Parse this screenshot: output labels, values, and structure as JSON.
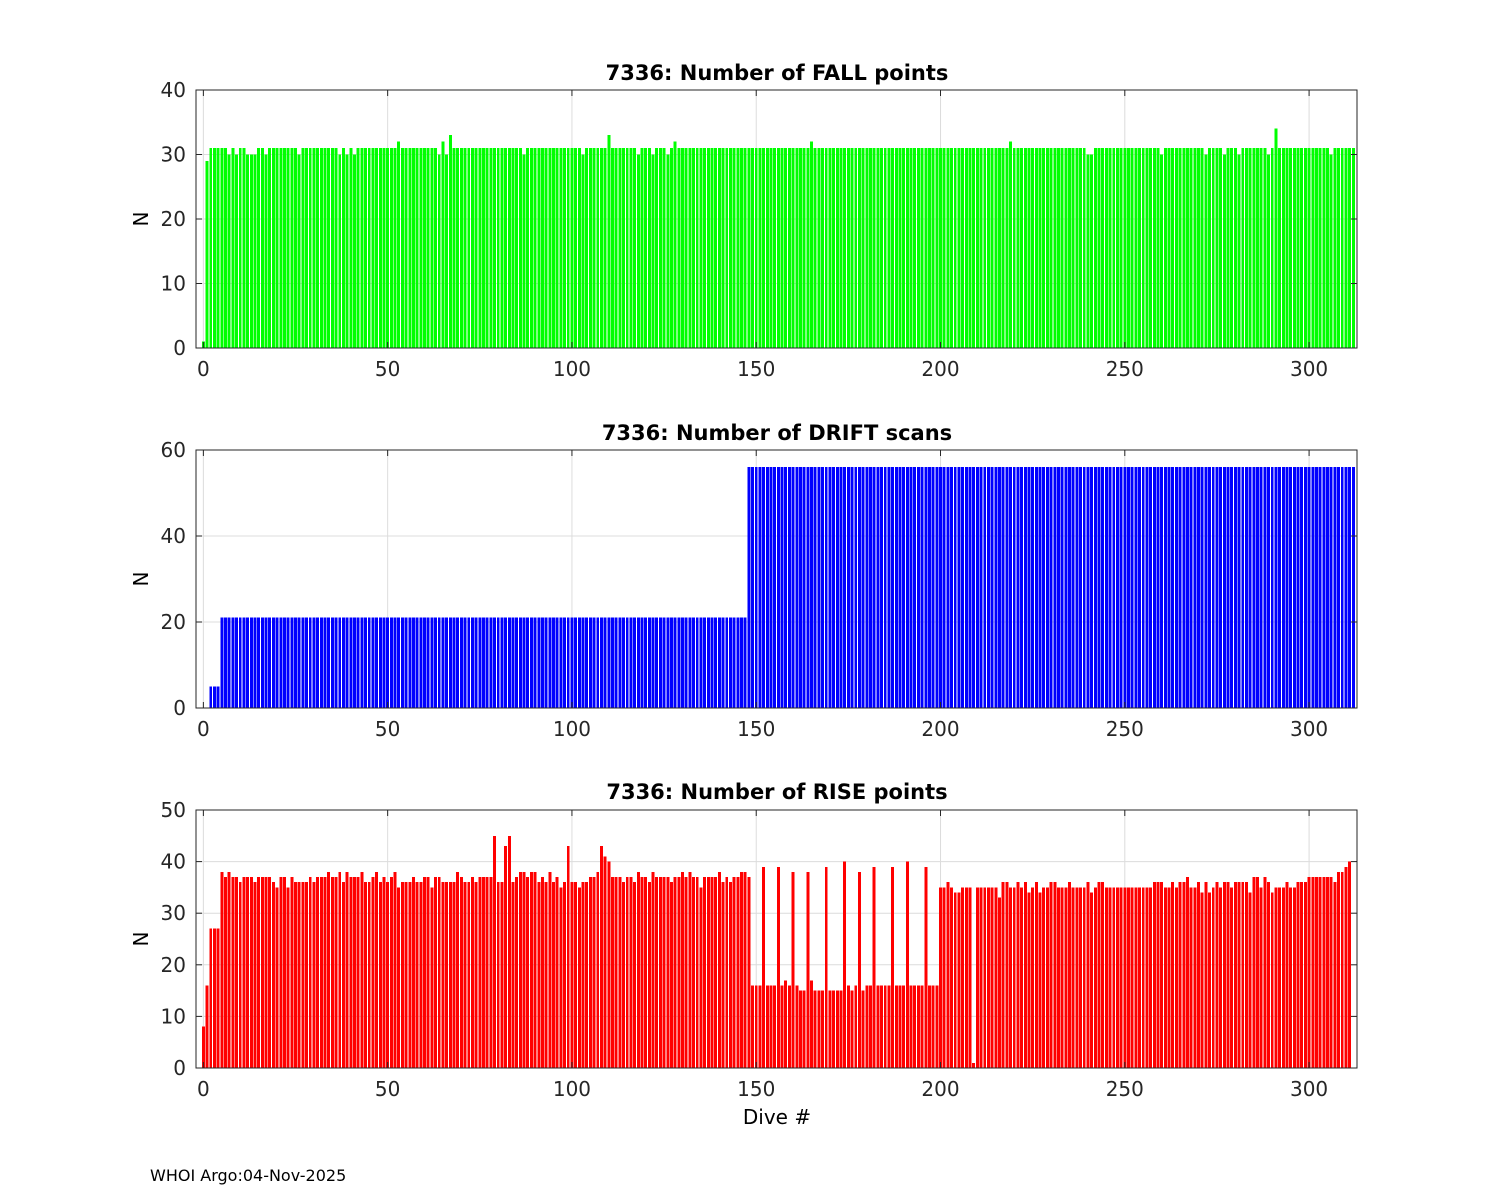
{
  "footer": "WHOI Argo:04-Nov-2025",
  "chart_data": [
    {
      "type": "bar",
      "title": "7336: Number of FALL points",
      "xlabel": "",
      "ylabel": "N",
      "xlim": [
        -2,
        313
      ],
      "ylim": [
        0,
        40
      ],
      "xticks": [
        0,
        50,
        100,
        150,
        200,
        250,
        300
      ],
      "yticks": [
        0,
        10,
        20,
        30,
        40
      ],
      "grid": true,
      "color": "#00ff00",
      "x_start": 0,
      "x_end": 312,
      "baseline_value": 31,
      "values": [
        1,
        29,
        31,
        31,
        31,
        31,
        31,
        30,
        31,
        30,
        31,
        31,
        30,
        30,
        30,
        31,
        31,
        30,
        31,
        31,
        31,
        31,
        31,
        31,
        31,
        31,
        30,
        31,
        31,
        31,
        31,
        31,
        31,
        31,
        31,
        31,
        31,
        30,
        31,
        30,
        31,
        30,
        31,
        31,
        31,
        31,
        31,
        31,
        31,
        31,
        31,
        31,
        31,
        32,
        31,
        31,
        31,
        31,
        31,
        31,
        31,
        31,
        31,
        31,
        30,
        32,
        30,
        33,
        31
      ],
      "overrides": {
        "110": 33,
        "128": 32,
        "165": 32,
        "219": 32,
        "291": 34,
        "240": 30,
        "241": 30,
        "260": 30,
        "272": 30,
        "277": 30,
        "281": 30,
        "289": 30,
        "306": 30,
        "87": 30,
        "103": 30,
        "118": 30,
        "122": 30,
        "126": 30,
        "180": 31
      }
    },
    {
      "type": "bar",
      "title": "7336: Number of DRIFT scans",
      "xlabel": "",
      "ylabel": "N",
      "xlim": [
        -2,
        313
      ],
      "ylim": [
        0,
        60
      ],
      "xticks": [
        0,
        50,
        100,
        150,
        200,
        250,
        300
      ],
      "yticks": [
        0,
        20,
        40,
        60
      ],
      "grid": true,
      "color": "#0000ff",
      "segments": [
        {
          "from": 2,
          "to": 4,
          "value": 5
        },
        {
          "from": 5,
          "to": 147,
          "value": 21
        },
        {
          "from": 148,
          "to": 312,
          "value": 56
        }
      ]
    },
    {
      "type": "bar",
      "title": "7336: Number of RISE points",
      "xlabel": "Dive #",
      "ylabel": "N",
      "xlim": [
        -2,
        313
      ],
      "ylim": [
        0,
        50
      ],
      "xticks": [
        0,
        50,
        100,
        150,
        200,
        250,
        300
      ],
      "yticks": [
        0,
        10,
        20,
        30,
        40,
        50
      ],
      "grid": true,
      "color": "#ff0000",
      "values": [
        8,
        16,
        27,
        27,
        27,
        38,
        37,
        38,
        37,
        37,
        36,
        37,
        37,
        37,
        36,
        37,
        37,
        37,
        37,
        36,
        35,
        37,
        37,
        35,
        37,
        36,
        36,
        36,
        36,
        37,
        36,
        37,
        37,
        37,
        38,
        37,
        37,
        38,
        36,
        38,
        37,
        37,
        37,
        38,
        36,
        36,
        37,
        38,
        36,
        37,
        36,
        37,
        38,
        35,
        36,
        36,
        36,
        37,
        36,
        36,
        37,
        37,
        35,
        37,
        37,
        36,
        36,
        36,
        36,
        38,
        37,
        36,
        36,
        37,
        36,
        37,
        37,
        37,
        37,
        45,
        36,
        36,
        43,
        45,
        36,
        37,
        38,
        38,
        37,
        38,
        38,
        36,
        37,
        36,
        38,
        36,
        37,
        35,
        36,
        43,
        36,
        36,
        35,
        36,
        36,
        37,
        37,
        38,
        43,
        41,
        40,
        37,
        37,
        37,
        36,
        37,
        37,
        36,
        38,
        37,
        37,
        36,
        38,
        37,
        37,
        37,
        37,
        36,
        37,
        37,
        38,
        37,
        38,
        37,
        37,
        35,
        37,
        37,
        37,
        37,
        38,
        36,
        37,
        36,
        37,
        37,
        38,
        38,
        37,
        16,
        16,
        16,
        39,
        16,
        16,
        16,
        39,
        16,
        17,
        16,
        38,
        16,
        15,
        15,
        38,
        17,
        15,
        15,
        15,
        39,
        15,
        15,
        15,
        15,
        40,
        16,
        15,
        16,
        38,
        15,
        16,
        16,
        39,
        16,
        16,
        16,
        16,
        39,
        16,
        16,
        16,
        40,
        16,
        16,
        16,
        16,
        39,
        16,
        16,
        16,
        35,
        35,
        36,
        35,
        34,
        34,
        35,
        35,
        35,
        1,
        35,
        35,
        35,
        35,
        35,
        35,
        33,
        36,
        36,
        35,
        35,
        36,
        35,
        36,
        34,
        35,
        36,
        34,
        35,
        35,
        36,
        36,
        35,
        35,
        35,
        36,
        35,
        35,
        35,
        35,
        36,
        34,
        35,
        36,
        36,
        35,
        35,
        35,
        35,
        35,
        35,
        35,
        35,
        35,
        35,
        35,
        35,
        35,
        36,
        36,
        36,
        35,
        35,
        36,
        35,
        36,
        36,
        37,
        35,
        35,
        36,
        34,
        36,
        34,
        35,
        36,
        35,
        36,
        36,
        35,
        36,
        36,
        36,
        36,
        34,
        37,
        37,
        35,
        37,
        36,
        34,
        35,
        35,
        35,
        36,
        35,
        35,
        36,
        36,
        36,
        37,
        37,
        37,
        37,
        37,
        37,
        37,
        36,
        38,
        38,
        39,
        40
      ]
    }
  ]
}
